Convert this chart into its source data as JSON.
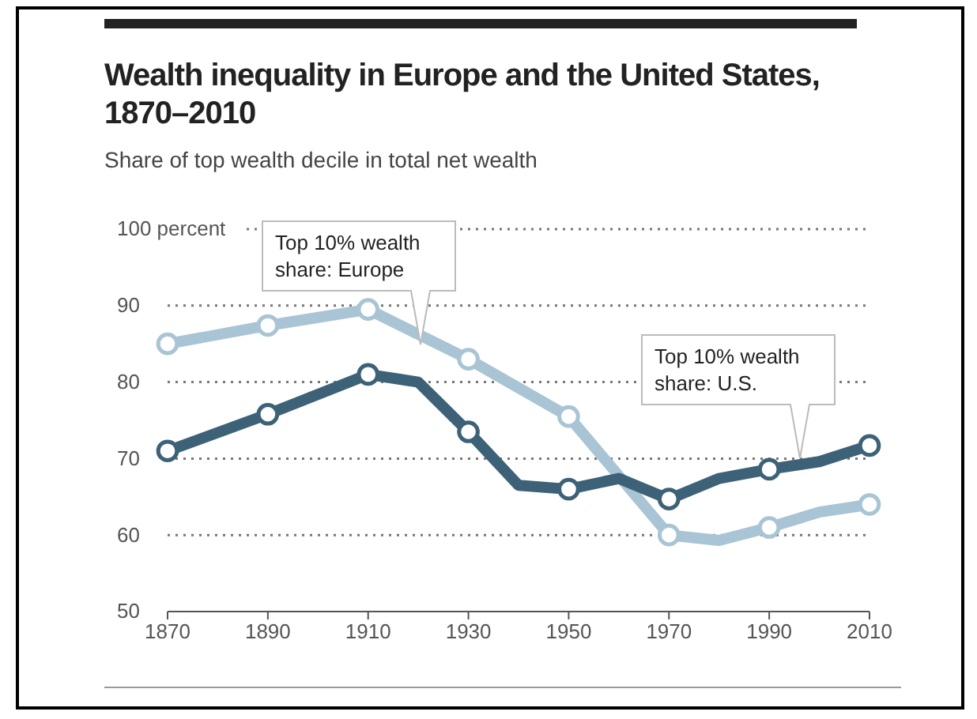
{
  "chart_data": {
    "type": "line",
    "title": "Wealth inequality in Europe and the United States, 1870–2010",
    "subtitle": "Share of top wealth decile in total net wealth",
    "xlim": [
      1870,
      2010
    ],
    "xticks": [
      1870,
      1890,
      1910,
      1930,
      1950,
      1970,
      1990,
      2010
    ],
    "ylim": [
      50,
      100
    ],
    "yticks": [
      50,
      60,
      70,
      80,
      90,
      {
        "value": 100,
        "label": "100 percent"
      }
    ],
    "grid": "y",
    "line_style": "solid",
    "series": [
      {
        "color": "#a9c4d4",
        "x": [
          1870,
          1890,
          1910,
          1930,
          1950,
          1970,
          1980,
          1990,
          2000,
          2010
        ],
        "values": [
          85,
          87.4,
          89.5,
          83,
          75.5,
          60,
          59.3,
          61,
          63,
          64
        ]
      },
      {
        "color": "#3d6278",
        "x": [
          1870,
          1890,
          1910,
          1920,
          1930,
          1940,
          1950,
          1960,
          1970,
          1980,
          1990,
          2000,
          2010
        ],
        "values": [
          71,
          75.8,
          81,
          80,
          73.5,
          66.5,
          66,
          67.4,
          64.7,
          67.4,
          68.6,
          69.6,
          71.7
        ]
      },
      {
        "type": "scatter",
        "marker": "circle",
        "color": "#a9c4d4",
        "x": [
          1870,
          1890,
          1910,
          1930,
          1950,
          1970,
          1990,
          2010
        ],
        "values": [
          85,
          87.4,
          89.5,
          83,
          75.5,
          60,
          61,
          64
        ]
      },
      {
        "type": "scatter",
        "marker": "circle",
        "color": "#3d6278",
        "x": [
          1870,
          1890,
          1910,
          1930,
          1950,
          1970,
          1990,
          2010
        ],
        "values": [
          71,
          75.8,
          81,
          73.5,
          66,
          64.7,
          68.6,
          71.7
        ]
      }
    ],
    "annotations": [
      "Top 10% wealth share: Europe",
      "Top 10% wealth share: U.S."
    ]
  }
}
